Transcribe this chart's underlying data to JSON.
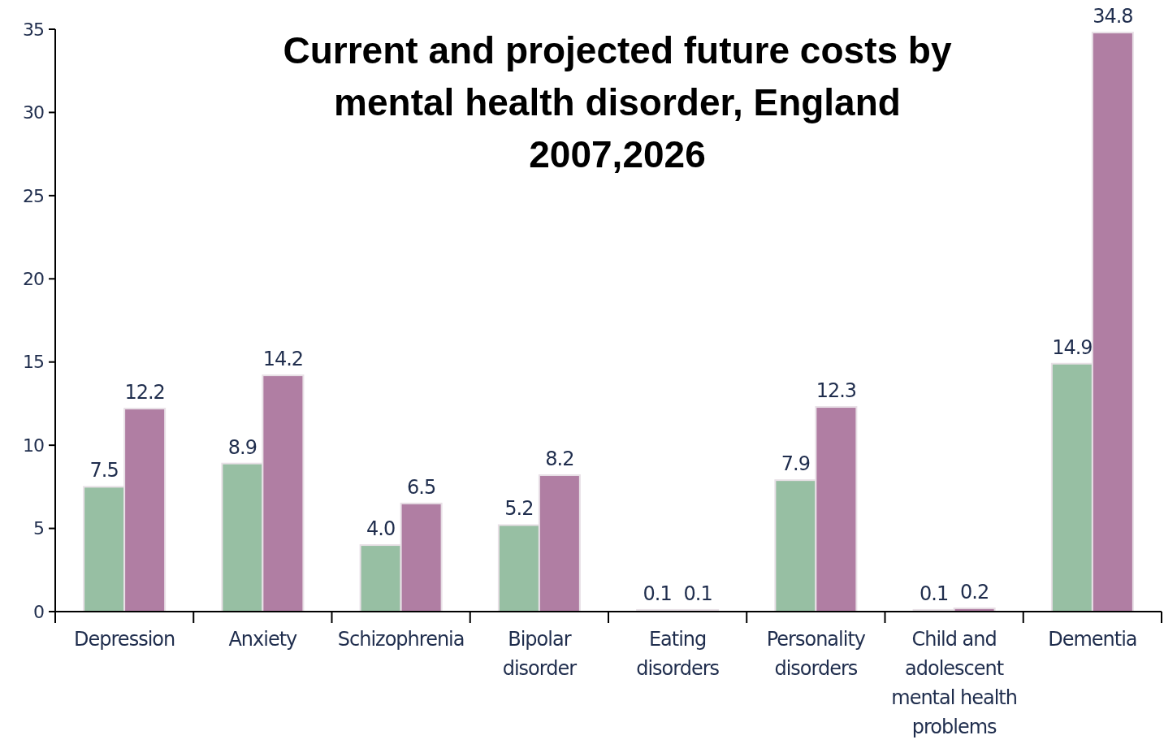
{
  "chart_data": {
    "type": "bar",
    "title": "Current and projected future costs by mental health disorder, England 2007,2026",
    "categories": [
      "Depression",
      "Anxiety",
      "Schizophrenia",
      "Bipolar disorder",
      "Eating disorders",
      "Personality disorders",
      "Child and adolescent mental health problems",
      "Dementia"
    ],
    "series": [
      {
        "color": "#97bfa3",
        "values": [
          7.5,
          8.9,
          4.0,
          5.2,
          0.1,
          7.9,
          0.1,
          14.9
        ],
        "value_labels": [
          "7.5",
          "8.9",
          "4.0",
          "5.2",
          "0.1",
          "7.9",
          "0.1",
          "14.9"
        ]
      },
      {
        "color": "#b07ea3",
        "values": [
          12.2,
          14.2,
          6.5,
          8.2,
          0.1,
          12.3,
          0.2,
          34.8
        ],
        "value_labels": [
          "12.2",
          "14.2",
          "6.5",
          "8.2",
          "0.1",
          "12.3",
          "0.2",
          "34.8"
        ]
      }
    ],
    "ylim": [
      0,
      35
    ],
    "yticks": [
      0,
      5,
      10,
      15,
      20,
      25,
      30,
      35
    ],
    "grid": false
  }
}
